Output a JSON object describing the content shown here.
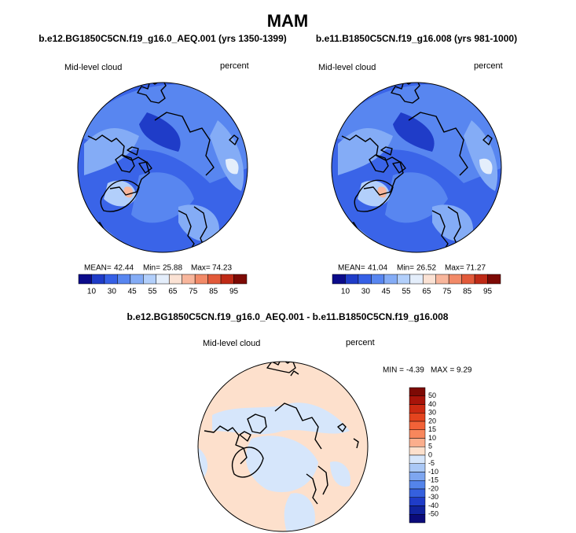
{
  "header": {
    "title": "MAM"
  },
  "panels": [
    {
      "title": "b.e12.BG1850C5CN.f19_g16.0_AEQ.001 (yrs 1350-1399)",
      "left_label": "Mid-level cloud",
      "right_label": "percent",
      "stats": {
        "mean_label": "MEAN=",
        "mean": 42.44,
        "min_label": "Min=",
        "min": 25.88,
        "max_label": "Max=",
        "max": 74.23
      }
    },
    {
      "title": "b.e11.B1850C5CN.f19_g16.008 (yrs 981-1000)",
      "left_label": "Mid-level cloud",
      "right_label": "percent",
      "stats": {
        "mean_label": "MEAN=",
        "mean": 41.04,
        "min_label": "Min=",
        "min": 26.52,
        "max_label": "Max=",
        "max": 71.27
      }
    }
  ],
  "colorbar": {
    "labels": [
      10,
      30,
      45,
      55,
      65,
      75,
      85,
      95
    ],
    "colors": [
      "#0b0b8a",
      "#1f3cc8",
      "#3660e6",
      "#5886f0",
      "#84acf6",
      "#b2cffb",
      "#e4eefb",
      "#fbe2d4",
      "#f8b69c",
      "#f28a68",
      "#e25a3a",
      "#bf2a16",
      "#7d0a05"
    ]
  },
  "difference": {
    "title": "b.e12.BG1850C5CN.f19_g16.0_AEQ.001 - b.e11.B1850C5CN.f19_g16.008",
    "left_label": "Mid-level cloud",
    "right_label": "percent",
    "stats": {
      "min_label": "MIN =",
      "min": -4.39,
      "max_label": "MAX =",
      "max": 9.29
    },
    "colorbar": {
      "labels": [
        50,
        40,
        30,
        20,
        15,
        10,
        5,
        0,
        -5,
        -10,
        -15,
        -20,
        -30,
        -40,
        -50
      ],
      "colors": [
        "#7d0a05",
        "#a8140a",
        "#cc2a12",
        "#e4441e",
        "#f26238",
        "#f8875c",
        "#fbae8c",
        "#fde0cc",
        "#d6e6fb",
        "#aac8f6",
        "#7ea6f0",
        "#5484ea",
        "#3560de",
        "#1f3cc8",
        "#11239e",
        "#0b0b7a"
      ]
    }
  }
}
